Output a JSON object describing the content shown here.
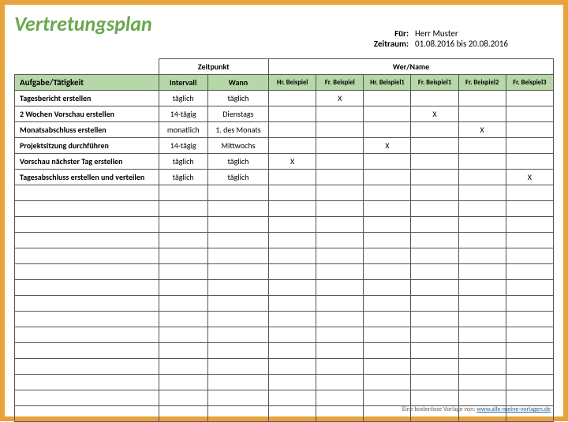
{
  "title": "Vertretungsplan",
  "meta": {
    "for_label": "Für:",
    "for_value": "Herr Muster",
    "period_label": "Zeitraum:",
    "period_value": "01.08.2016 bis 20.08.2016"
  },
  "headers": {
    "zeitpunkt": "Zeitpunkt",
    "wer": "Wer/Name",
    "task": "Aufgabe/Tätigkeit",
    "intervall": "Intervall",
    "wann": "Wann",
    "names": [
      "Hr. Beispiel",
      "Fr. Beispiel",
      "Hr. Beispiel1",
      "Fr. Beispiel1",
      "Fr. Beispiel2",
      "Fr. Beispiel3"
    ]
  },
  "rows": [
    {
      "task": "Tagesbericht erstellen",
      "intervall": "täglich",
      "wann": "täglich",
      "marks": [
        "",
        "X",
        "",
        "",
        "",
        ""
      ]
    },
    {
      "task": "2 Wochen Vorschau erstellen",
      "intervall": "14-tägig",
      "wann": "Dienstags",
      "marks": [
        "",
        "",
        "",
        "X",
        "",
        ""
      ]
    },
    {
      "task": "Monatsabschluss erstellen",
      "intervall": "monatlich",
      "wann": "1. des Monats",
      "marks": [
        "",
        "",
        "",
        "",
        "X",
        ""
      ]
    },
    {
      "task": "Projektsitzung durchführen",
      "intervall": "14-tägig",
      "wann": "Mittwochs",
      "marks": [
        "",
        "",
        "X",
        "",
        "",
        ""
      ]
    },
    {
      "task": "Vorschau nächster Tag erstellen",
      "intervall": "täglich",
      "wann": "täglich",
      "marks": [
        "X",
        "",
        "",
        "",
        "",
        ""
      ]
    },
    {
      "task": "Tagesabschluss erstellen und verteilen",
      "intervall": "täglich",
      "wann": "täglich",
      "marks": [
        "",
        "",
        "",
        "",
        "",
        "X"
      ]
    }
  ],
  "empty_rows": 15,
  "footer": {
    "text": "Eine kostenlose Vorlage von:",
    "link": "www.alle-meine-vorlagen.de"
  },
  "colors": {
    "frame": "#e8a33d",
    "title": "#6aa84f",
    "header_bg": "#b6d7a8",
    "border": "#555555"
  }
}
